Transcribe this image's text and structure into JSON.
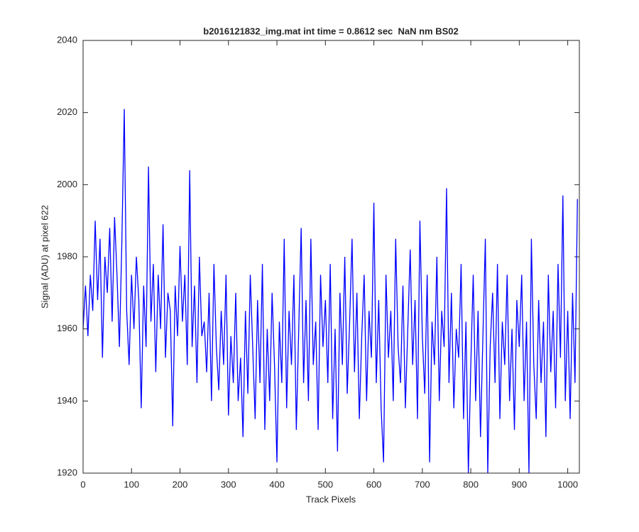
{
  "chart_data": {
    "type": "line",
    "title": "b2016121832_img.mat int time = 0.8612 sec  NaN nm BS02",
    "xlabel": "Track Pixels",
    "ylabel": "Signal (ADU) at pixel 622",
    "xlim": [
      0,
      1024
    ],
    "ylim": [
      1920,
      2040
    ],
    "xticks": [
      0,
      100,
      200,
      300,
      400,
      500,
      600,
      700,
      800,
      900,
      1000
    ],
    "yticks": [
      1920,
      1940,
      1960,
      1980,
      2000,
      2020,
      2040
    ],
    "grid": false,
    "x": [
      0,
      5,
      10,
      15,
      20,
      25,
      30,
      35,
      40,
      45,
      50,
      55,
      60,
      65,
      70,
      75,
      80,
      85,
      90,
      95,
      100,
      105,
      110,
      115,
      120,
      125,
      130,
      135,
      140,
      145,
      150,
      155,
      160,
      165,
      170,
      175,
      180,
      185,
      190,
      195,
      200,
      205,
      210,
      215,
      220,
      225,
      230,
      235,
      240,
      245,
      250,
      255,
      260,
      265,
      270,
      275,
      280,
      285,
      290,
      295,
      300,
      305,
      310,
      315,
      320,
      325,
      330,
      335,
      340,
      345,
      350,
      355,
      360,
      365,
      370,
      375,
      380,
      385,
      390,
      395,
      400,
      405,
      410,
      415,
      420,
      425,
      430,
      435,
      440,
      445,
      450,
      455,
      460,
      465,
      470,
      475,
      480,
      485,
      490,
      495,
      500,
      505,
      510,
      515,
      520,
      525,
      530,
      535,
      540,
      545,
      550,
      555,
      560,
      565,
      570,
      575,
      580,
      585,
      590,
      595,
      600,
      605,
      610,
      615,
      620,
      625,
      630,
      635,
      640,
      645,
      650,
      655,
      660,
      665,
      670,
      675,
      680,
      685,
      690,
      695,
      700,
      705,
      710,
      715,
      720,
      725,
      730,
      735,
      740,
      745,
      750,
      755,
      760,
      765,
      770,
      775,
      780,
      785,
      790,
      795,
      800,
      805,
      810,
      815,
      820,
      825,
      830,
      835,
      840,
      845,
      850,
      855,
      860,
      865,
      870,
      875,
      880,
      885,
      890,
      895,
      900,
      905,
      910,
      915,
      920,
      925,
      930,
      935,
      940,
      945,
      950,
      955,
      960,
      965,
      970,
      975,
      980,
      985,
      990,
      995,
      1000,
      1005,
      1010,
      1015,
      1020
    ],
    "series": [
      {
        "name": "signal",
        "color": "#0000ff",
        "values": [
          1960,
          1972,
          1958,
          1975,
          1965,
          1990,
          1968,
          1985,
          1952,
          1980,
          1970,
          1988,
          1962,
          1991,
          1975,
          1955,
          1984,
          2021,
          1965,
          1950,
          1975,
          1960,
          1980,
          1968,
          1938,
          1972,
          1955,
          2005,
          1962,
          1978,
          1948,
          1975,
          1960,
          1989,
          1952,
          1970,
          1965,
          1933,
          1972,
          1958,
          1983,
          1962,
          1975,
          1950,
          2004,
          1955,
          1972,
          1945,
          1980,
          1958,
          1962,
          1948,
          1970,
          1940,
          1978,
          1955,
          1943,
          1965,
          1950,
          1975,
          1936,
          1958,
          1945,
          1970,
          1940,
          1952,
          1930,
          1965,
          1942,
          1975,
          1955,
          1935,
          1968,
          1945,
          1978,
          1932,
          1960,
          1940,
          1970,
          1950,
          1923,
          1962,
          1945,
          1985,
          1938,
          1965,
          1950,
          1975,
          1932,
          1960,
          1988,
          1945,
          1968,
          1940,
          1985,
          1950,
          1962,
          1932,
          1975,
          1955,
          1968,
          1945,
          1978,
          1935,
          1960,
          1926,
          1970,
          1950,
          1980,
          1942,
          1962,
          1985,
          1948,
          1970,
          1935,
          1958,
          1975,
          1940,
          1965,
          1952,
          1995,
          1945,
          1968,
          1938,
          1923,
          1975,
          1952,
          1965,
          1940,
          1985,
          1955,
          1945,
          1972,
          1938,
          1960,
          1982,
          1950,
          1968,
          1935,
          1990,
          1958,
          1942,
          1975,
          1923,
          1962,
          1950,
          1980,
          1940,
          1965,
          1955,
          1999,
          1945,
          1970,
          1938,
          1960,
          1952,
          1978,
          1935,
          1962,
          1920,
          1950,
          1975,
          1940,
          1965,
          1930,
          1958,
          1985,
          1920,
          1955,
          1970,
          1945,
          1978,
          1935,
          1962,
          1950,
          1975,
          1940,
          1960,
          1932,
          1968,
          1955,
          1975,
          1940,
          1962,
          1920,
          1985,
          1950,
          1935,
          1968,
          1945,
          1962,
          1930,
          1975,
          1948,
          1965,
          1938,
          1978,
          1952,
          1997,
          1940,
          1965,
          1935,
          1970,
          1945,
          1996
        ]
      }
    ]
  }
}
